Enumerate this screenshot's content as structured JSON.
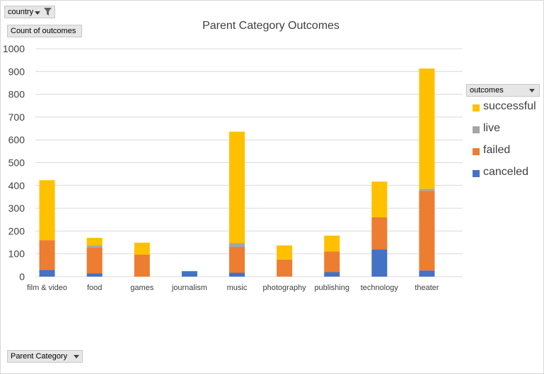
{
  "filters": {
    "country_label": "country",
    "values_label": "Count of outcomes",
    "axis_field_label": "Parent Category",
    "legend_field_label": "outcomes"
  },
  "colors": {
    "successful": "#ffc000",
    "live": "#a5a5a5",
    "failed": "#ed7d31",
    "canceled": "#4472c4",
    "gridline": "#d9d9d9",
    "text": "#595959"
  },
  "chart_data": {
    "type": "bar",
    "stacked": true,
    "title": "Parent Category Outcomes",
    "xlabel": "",
    "ylabel": "",
    "ylim": [
      0,
      1000
    ],
    "yticks": [
      0,
      100,
      200,
      300,
      400,
      500,
      600,
      700,
      800,
      900,
      1000
    ],
    "grid": true,
    "legend_position": "right",
    "categories": [
      "film & video",
      "food",
      "games",
      "journalism",
      "music",
      "photography",
      "publishing",
      "technology",
      "theater"
    ],
    "series": [
      {
        "name": "canceled",
        "values": [
          30,
          15,
          0,
          24,
          17,
          0,
          20,
          120,
          27
        ]
      },
      {
        "name": "failed",
        "values": [
          130,
          113,
          96,
          0,
          113,
          75,
          90,
          140,
          350
        ]
      },
      {
        "name": "live",
        "values": [
          0,
          8,
          0,
          0,
          17,
          0,
          0,
          0,
          8
        ]
      },
      {
        "name": "successful",
        "values": [
          263,
          34,
          53,
          0,
          489,
          62,
          70,
          157,
          528
        ]
      }
    ]
  },
  "legend": {
    "items": [
      "successful",
      "live",
      "failed",
      "canceled"
    ]
  }
}
